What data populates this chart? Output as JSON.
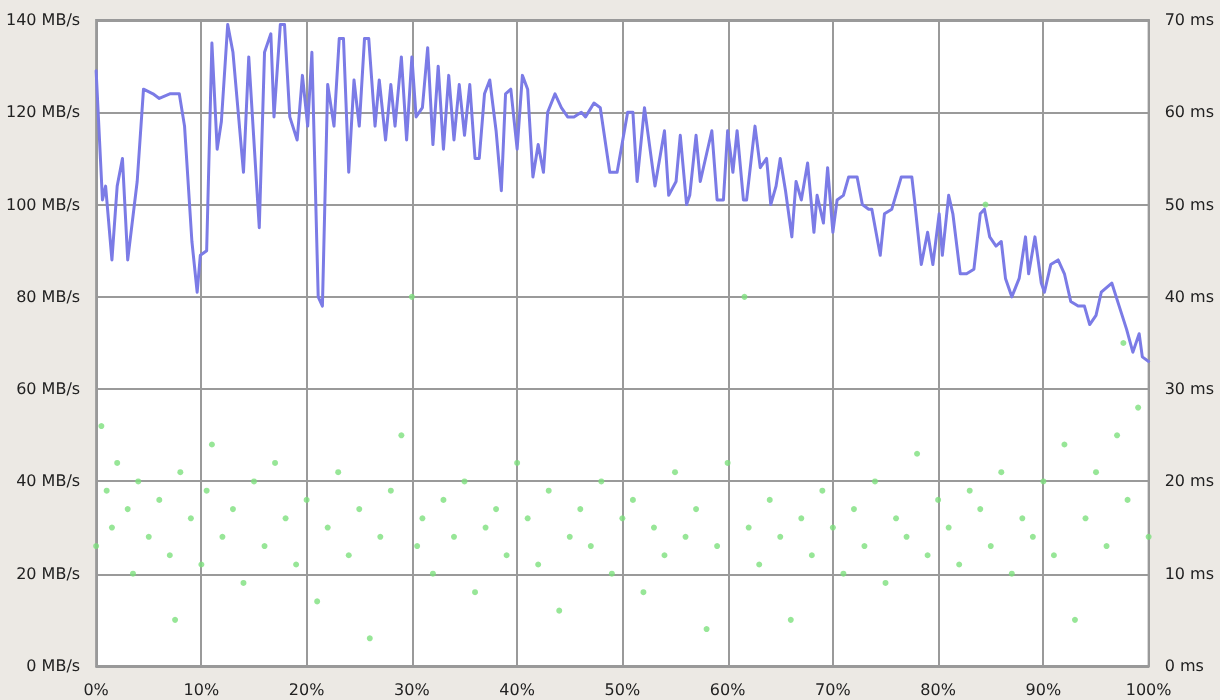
{
  "chart_data": {
    "type": "line",
    "xlim": [
      0,
      100
    ],
    "ylim": [
      0,
      140
    ],
    "y2lim": [
      0,
      70
    ],
    "grid": true,
    "xticks": [
      {
        "value": 0,
        "label": "0%"
      },
      {
        "value": 10,
        "label": "10%"
      },
      {
        "value": 20,
        "label": "20%"
      },
      {
        "value": 30,
        "label": "30%"
      },
      {
        "value": 40,
        "label": "40%"
      },
      {
        "value": 50,
        "label": "50%"
      },
      {
        "value": 60,
        "label": "60%"
      },
      {
        "value": 70,
        "label": "70%"
      },
      {
        "value": 80,
        "label": "80%"
      },
      {
        "value": 90,
        "label": "90%"
      },
      {
        "value": 100,
        "label": "100%"
      }
    ],
    "yticks": [
      {
        "value": 0,
        "label": "0 MB/s"
      },
      {
        "value": 20,
        "label": "20 MB/s"
      },
      {
        "value": 40,
        "label": "40 MB/s"
      },
      {
        "value": 60,
        "label": "60 MB/s"
      },
      {
        "value": 80,
        "label": "80 MB/s"
      },
      {
        "value": 100,
        "label": "100 MB/s"
      },
      {
        "value": 120,
        "label": "120 MB/s"
      },
      {
        "value": 140,
        "label": "140 MB/s"
      }
    ],
    "y2ticks": [
      {
        "value": 0,
        "label": "0 ms"
      },
      {
        "value": 10,
        "label": "10 ms"
      },
      {
        "value": 20,
        "label": "20 ms"
      },
      {
        "value": 30,
        "label": "30 ms"
      },
      {
        "value": 40,
        "label": "40 ms"
      },
      {
        "value": 50,
        "label": "50 ms"
      },
      {
        "value": 60,
        "label": "60 ms"
      },
      {
        "value": 70,
        "label": "70 ms"
      }
    ],
    "series": [
      {
        "color": "#7b7be6",
        "marker": "none",
        "line_style": "solid",
        "x": [
          0,
          0.6,
          0.9,
          1.5,
          2.0,
          2.5,
          3.0,
          3.9,
          4.5,
          5.4,
          6.0,
          7.0,
          7.9,
          8.4,
          9.1,
          9.6,
          9.9,
          10.5,
          11.0,
          11.5,
          11.9,
          12.5,
          13.0,
          14.0,
          14.5,
          15.5,
          16.0,
          16.6,
          16.9,
          17.5,
          17.9,
          18.4,
          19.1,
          19.6,
          20.1,
          20.5,
          21.1,
          21.5,
          22.0,
          22.6,
          23.1,
          23.5,
          24.0,
          24.5,
          25.0,
          25.5,
          25.9,
          26.5,
          26.9,
          27.5,
          28.0,
          28.4,
          29.0,
          29.5,
          30.0,
          30.4,
          31.0,
          31.5,
          32.0,
          32.5,
          33.0,
          33.5,
          34.0,
          34.5,
          35.0,
          35.5,
          36.0,
          36.4,
          36.9,
          37.4,
          38.0,
          38.5,
          38.9,
          39.4,
          40.0,
          40.5,
          41.0,
          41.5,
          42.0,
          42.5,
          42.9,
          43.6,
          44.2,
          44.8,
          45.4,
          46.1,
          46.5,
          47.3,
          47.9,
          48.8,
          49.5,
          50.5,
          51.0,
          51.4,
          52.1,
          53.1,
          54.0,
          54.4,
          55.1,
          55.5,
          56.1,
          56.4,
          57.0,
          57.4,
          58.5,
          59.0,
          59.6,
          60.0,
          60.5,
          60.9,
          61.5,
          61.8,
          62.6,
          63.1,
          63.7,
          64.1,
          64.6,
          65.0,
          65.5,
          66.1,
          66.5,
          67.0,
          67.6,
          68.2,
          68.5,
          69.1,
          69.5,
          70.0,
          70.4,
          71.0,
          71.5,
          72.3,
          72.8,
          73.4,
          73.7,
          74.5,
          74.9,
          75.6,
          76.5,
          77.5,
          77.8,
          78.4,
          79.0,
          79.5,
          80.1,
          80.4,
          81.0,
          81.4,
          82.1,
          82.7,
          83.4,
          84.0,
          84.4,
          84.9,
          85.5,
          86.0,
          86.4,
          87.0,
          87.7,
          88.3,
          88.6,
          89.2,
          89.8,
          90.1,
          90.7,
          91.4,
          92.0,
          92.6,
          93.3,
          93.9,
          94.4,
          95.0,
          95.5,
          96.5,
          97.2,
          97.9,
          98.5,
          99.1,
          99.4,
          100
        ],
        "values": [
          129,
          101,
          104,
          88,
          104,
          110,
          88,
          105,
          125,
          124,
          123,
          124,
          124,
          117,
          92,
          81,
          89,
          90,
          135,
          112,
          118,
          139,
          133,
          107,
          132,
          95,
          133,
          137,
          119,
          139,
          139,
          119,
          114,
          128,
          117,
          133,
          80,
          78,
          126,
          117,
          136,
          136,
          107,
          127,
          117,
          136,
          136,
          117,
          127,
          114,
          126,
          117,
          132,
          114,
          132,
          119,
          121,
          134,
          113,
          130,
          112,
          128,
          114,
          126,
          115,
          126,
          110,
          110,
          124,
          127,
          116,
          103,
          124,
          125,
          112,
          128,
          125,
          106,
          113,
          107,
          120,
          124,
          121,
          119,
          119,
          120,
          119,
          122,
          121,
          107,
          107,
          120,
          120,
          105,
          121,
          104,
          116,
          102,
          105,
          115,
          100,
          102,
          115,
          105,
          116,
          101,
          101,
          116,
          107,
          116,
          101,
          101,
          117,
          108,
          110,
          100,
          104,
          110,
          103,
          93,
          105,
          101,
          109,
          94,
          102,
          96,
          108,
          94,
          101,
          102,
          106,
          106,
          100,
          99,
          99,
          89,
          98,
          99,
          106,
          106,
          100,
          87,
          94,
          87,
          98,
          89,
          102,
          98,
          85,
          85,
          86,
          98,
          99,
          93,
          91,
          92,
          84,
          80,
          84,
          93,
          85,
          93,
          83,
          81,
          87,
          88,
          85,
          79,
          78,
          78,
          74,
          76,
          81,
          83,
          78,
          73,
          68,
          72,
          67,
          66
        ]
      },
      {
        "type": "scatter",
        "axis": "y2",
        "color": "#7de07d",
        "marker": "circle",
        "x": [
          0,
          0.5,
          1,
          1.5,
          2,
          3,
          3.5,
          4,
          5,
          6,
          7,
          7.5,
          8,
          9,
          10,
          10.5,
          11,
          12,
          13,
          14,
          15,
          16,
          17,
          18,
          19,
          20,
          21,
          22,
          23,
          24,
          25,
          26,
          27,
          28,
          29,
          30,
          30.5,
          31,
          32,
          33,
          34,
          35,
          36,
          37,
          38,
          39,
          40,
          41,
          42,
          43,
          44,
          45,
          46,
          47,
          48,
          49,
          50,
          51,
          52,
          53,
          54,
          55,
          56,
          57,
          58,
          59,
          60,
          61.6,
          62,
          63,
          64,
          65,
          66,
          67,
          68,
          69,
          70,
          71,
          72,
          73,
          74,
          75,
          76,
          77,
          78,
          79,
          80,
          81,
          82,
          83,
          84,
          84.5,
          85,
          86,
          87,
          88,
          89,
          90,
          91,
          92,
          93,
          94,
          95,
          96,
          97,
          97.6,
          98,
          99,
          100
        ],
        "values": [
          13,
          26,
          19,
          15,
          22,
          17,
          10,
          20,
          14,
          18,
          12,
          5,
          21,
          16,
          11,
          19,
          24,
          14,
          17,
          9,
          20,
          13,
          22,
          16,
          11,
          18,
          7,
          15,
          21,
          12,
          17,
          3,
          14,
          19,
          25,
          40,
          13,
          16,
          10,
          18,
          14,
          20,
          8,
          15,
          17,
          12,
          22,
          16,
          11,
          19,
          6,
          14,
          17,
          13,
          20,
          10,
          16,
          18,
          8,
          15,
          12,
          21,
          14,
          17,
          4,
          13,
          22,
          40,
          15,
          11,
          18,
          14,
          5,
          16,
          12,
          19,
          15,
          10,
          17,
          13,
          20,
          9,
          16,
          14,
          23,
          12,
          18,
          15,
          11,
          19,
          17,
          50,
          13,
          21,
          10,
          16,
          14,
          20,
          12,
          24,
          5,
          16,
          21,
          13,
          25,
          35,
          18,
          28,
          14
        ]
      }
    ]
  }
}
